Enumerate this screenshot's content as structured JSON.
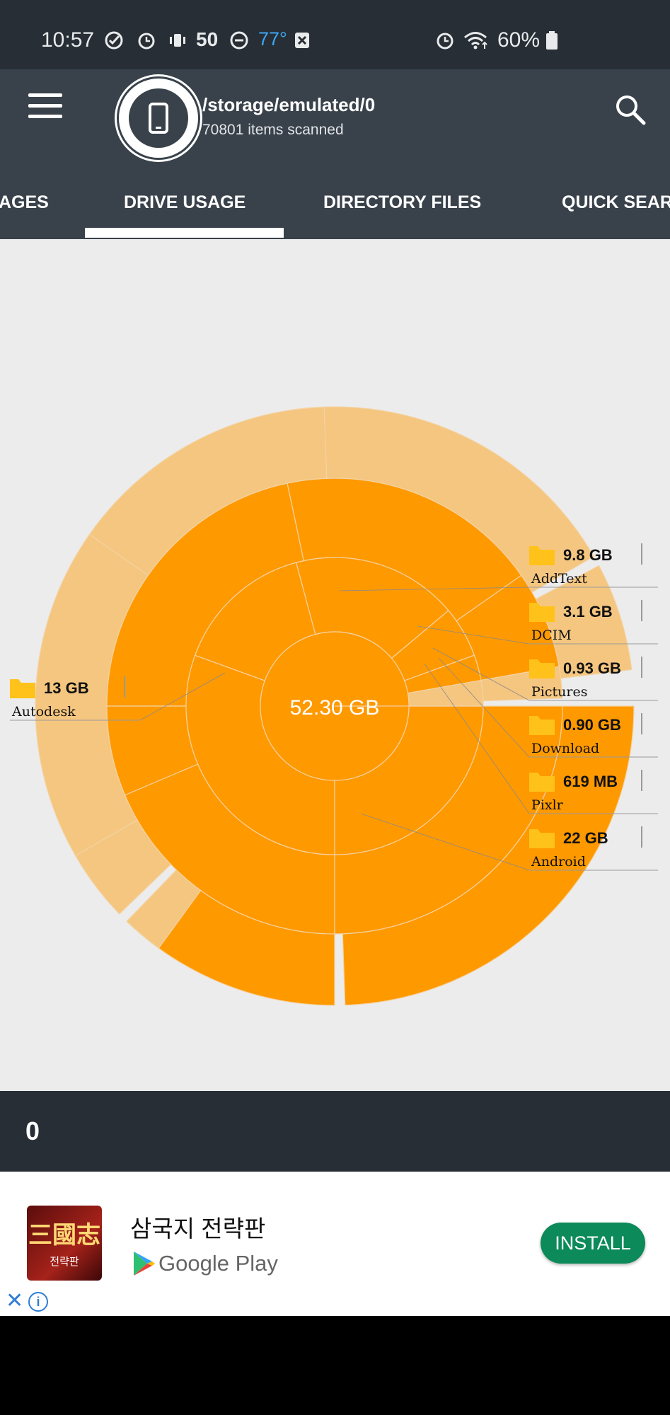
{
  "status_bar": {
    "time": "10:57",
    "signal_number": "50",
    "temperature": "77°",
    "battery": "60%",
    "icons": [
      "check-circle-icon",
      "alarm-icon",
      "vibrate-icon",
      "do-not-disturb-icon",
      "x-box-icon",
      "alarm-icon",
      "wifi-icon",
      "battery-icon"
    ],
    "temperature_color": "#3ea6f2"
  },
  "header": {
    "path": "/storage/emulated/0",
    "items_scanned": "70801 items scanned"
  },
  "tabs": [
    {
      "label": "AGES"
    },
    {
      "label": "DRIVE USAGE",
      "selected": true
    },
    {
      "label": "DIRECTORY FILES"
    },
    {
      "label": "QUICK SEAR"
    }
  ],
  "chart_data": {
    "type": "sunburst",
    "total": "52.30 GB",
    "colors": {
      "folder_segment": "#ff9900",
      "file_segment": "#f5c680"
    },
    "labels": [
      {
        "size": "9.8 GB",
        "name": "AddText"
      },
      {
        "size": "3.1 GB",
        "name": "DCIM"
      },
      {
        "size": "0.93 GB",
        "name": "Pictures"
      },
      {
        "size": "0.90 GB",
        "name": "Download"
      },
      {
        "size": "619 MB",
        "name": "Pixlr"
      },
      {
        "size": "22 GB",
        "name": "Android"
      },
      {
        "size": "13 GB",
        "name": "Autodesk"
      }
    ]
  },
  "bottom_bar": {
    "count": "0"
  },
  "ad": {
    "app_title": "삼국지 전략판",
    "store": "Google Play",
    "install_label": "INSTALL",
    "icon_title": "三國志",
    "icon_sub": "전략판"
  }
}
